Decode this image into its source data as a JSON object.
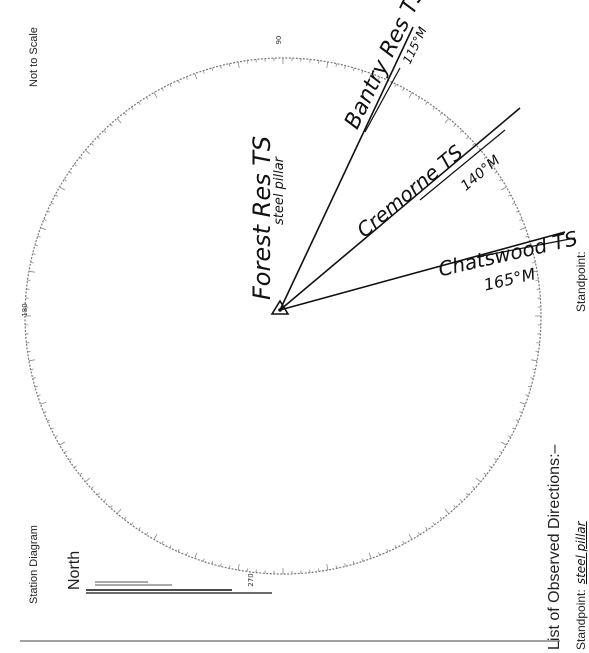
{
  "header": {
    "not_to_scale": "Not to Scale",
    "station_diagram": "Station Diagram",
    "north": "North"
  },
  "footer": {
    "list_title": "List of Observed Directions:–",
    "standpoint_label": "Standpoint:",
    "standpoint_value": "steel pillar",
    "standpoint_right": "Standpoint:"
  },
  "station": {
    "name": "Forest Res TS",
    "mark": "steel pillar"
  },
  "rays": [
    {
      "name": "Bantry Res TS",
      "distance": "115°M"
    },
    {
      "name": "Cremorne TS",
      "distance": "140°M"
    },
    {
      "name": "Chatswood TS",
      "distance": "165°M"
    }
  ],
  "circle_labels": [
    "90",
    "180",
    "270"
  ]
}
